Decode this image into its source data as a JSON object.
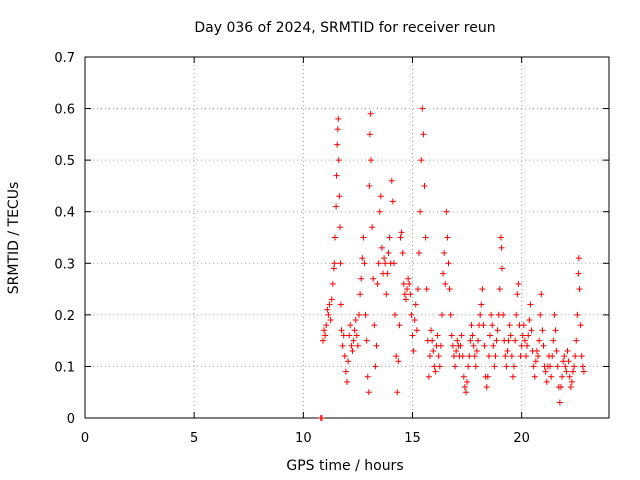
{
  "chart_data": {
    "type": "scatter",
    "title": "Day 036 of 2024, SRMTID for receiver reun",
    "xlabel": "GPS time / hours",
    "ylabel": "SRMTID / TECUs",
    "xlim": [
      0,
      24
    ],
    "ylim": [
      0,
      0.7
    ],
    "xticks": [
      0,
      5,
      10,
      15,
      20
    ],
    "yticks": [
      0,
      0.1,
      0.2,
      0.3,
      0.4,
      0.5,
      0.6,
      0.7
    ],
    "xtick_labels": [
      "0",
      "5",
      "10",
      "15",
      "20"
    ],
    "ytick_labels": [
      "0",
      "0.1",
      "0.2",
      "0.3",
      "0.4",
      "0.5",
      "0.6",
      "0.7"
    ],
    "grid": true,
    "marker": "+",
    "color": "#ff0000",
    "series": [
      {
        "name": "SRMTID",
        "points": [
          [
            10.8,
            0.0
          ],
          [
            10.85,
            0.0
          ],
          [
            10.9,
            0.15
          ],
          [
            10.95,
            0.17
          ],
          [
            11.0,
            0.16
          ],
          [
            11.05,
            0.18
          ],
          [
            11.1,
            0.21
          ],
          [
            11.15,
            0.2
          ],
          [
            11.2,
            0.22
          ],
          [
            11.25,
            0.19
          ],
          [
            11.3,
            0.23
          ],
          [
            11.35,
            0.26
          ],
          [
            11.4,
            0.29
          ],
          [
            11.42,
            0.3
          ],
          [
            11.45,
            0.35
          ],
          [
            11.5,
            0.41
          ],
          [
            11.52,
            0.47
          ],
          [
            11.55,
            0.53
          ],
          [
            11.58,
            0.56
          ],
          [
            11.6,
            0.58
          ],
          [
            11.62,
            0.5
          ],
          [
            11.65,
            0.43
          ],
          [
            11.68,
            0.37
          ],
          [
            11.7,
            0.3
          ],
          [
            11.72,
            0.22
          ],
          [
            11.75,
            0.17
          ],
          [
            11.8,
            0.14
          ],
          [
            11.85,
            0.16
          ],
          [
            11.9,
            0.12
          ],
          [
            11.95,
            0.09
          ],
          [
            12.0,
            0.07
          ],
          [
            12.05,
            0.11
          ],
          [
            12.1,
            0.16
          ],
          [
            12.15,
            0.18
          ],
          [
            12.2,
            0.14
          ],
          [
            12.25,
            0.13
          ],
          [
            12.3,
            0.15
          ],
          [
            12.35,
            0.17
          ],
          [
            12.4,
            0.19
          ],
          [
            12.45,
            0.16
          ],
          [
            12.5,
            0.14
          ],
          [
            12.55,
            0.2
          ],
          [
            12.6,
            0.24
          ],
          [
            12.65,
            0.27
          ],
          [
            12.7,
            0.31
          ],
          [
            12.75,
            0.35
          ],
          [
            12.8,
            0.3
          ],
          [
            12.85,
            0.2
          ],
          [
            12.9,
            0.15
          ],
          [
            12.95,
            0.08
          ],
          [
            13.0,
            0.05
          ],
          [
            13.02,
            0.45
          ],
          [
            13.05,
            0.55
          ],
          [
            13.08,
            0.59
          ],
          [
            13.1,
            0.5
          ],
          [
            13.15,
            0.37
          ],
          [
            13.2,
            0.27
          ],
          [
            13.25,
            0.18
          ],
          [
            13.3,
            0.1
          ],
          [
            13.35,
            0.14
          ],
          [
            13.4,
            0.26
          ],
          [
            13.45,
            0.3
          ],
          [
            13.5,
            0.4
          ],
          [
            13.55,
            0.43
          ],
          [
            13.6,
            0.33
          ],
          [
            13.65,
            0.28
          ],
          [
            13.7,
            0.31
          ],
          [
            13.75,
            0.3
          ],
          [
            13.8,
            0.24
          ],
          [
            13.85,
            0.28
          ],
          [
            13.9,
            0.32
          ],
          [
            13.95,
            0.35
          ],
          [
            14.0,
            0.3
          ],
          [
            14.05,
            0.46
          ],
          [
            14.1,
            0.42
          ],
          [
            14.15,
            0.3
          ],
          [
            14.2,
            0.2
          ],
          [
            14.25,
            0.12
          ],
          [
            14.3,
            0.05
          ],
          [
            14.35,
            0.11
          ],
          [
            14.4,
            0.18
          ],
          [
            14.45,
            0.35
          ],
          [
            14.5,
            0.36
          ],
          [
            14.55,
            0.32
          ],
          [
            14.6,
            0.26
          ],
          [
            14.65,
            0.24
          ],
          [
            14.7,
            0.23
          ],
          [
            14.75,
            0.25
          ],
          [
            14.8,
            0.27
          ],
          [
            14.85,
            0.26
          ],
          [
            14.9,
            0.24
          ],
          [
            14.95,
            0.2
          ],
          [
            15.0,
            0.16
          ],
          [
            15.05,
            0.13
          ],
          [
            15.1,
            0.19
          ],
          [
            15.15,
            0.22
          ],
          [
            15.2,
            0.17
          ],
          [
            15.25,
            0.25
          ],
          [
            15.3,
            0.32
          ],
          [
            15.35,
            0.4
          ],
          [
            15.4,
            0.5
          ],
          [
            15.45,
            0.6
          ],
          [
            15.5,
            0.55
          ],
          [
            15.55,
            0.45
          ],
          [
            15.6,
            0.35
          ],
          [
            15.65,
            0.25
          ],
          [
            15.7,
            0.15
          ],
          [
            15.75,
            0.08
          ],
          [
            15.8,
            0.12
          ],
          [
            15.85,
            0.17
          ],
          [
            15.9,
            0.15
          ],
          [
            15.95,
            0.13
          ],
          [
            16.0,
            0.1
          ],
          [
            16.05,
            0.09
          ],
          [
            16.1,
            0.14
          ],
          [
            16.15,
            0.16
          ],
          [
            16.2,
            0.12
          ],
          [
            16.25,
            0.1
          ],
          [
            16.3,
            0.14
          ],
          [
            16.35,
            0.2
          ],
          [
            16.4,
            0.28
          ],
          [
            16.45,
            0.32
          ],
          [
            16.5,
            0.26
          ],
          [
            16.55,
            0.4
          ],
          [
            16.6,
            0.35
          ],
          [
            16.65,
            0.3
          ],
          [
            16.7,
            0.25
          ],
          [
            16.75,
            0.2
          ],
          [
            16.8,
            0.16
          ],
          [
            16.85,
            0.14
          ],
          [
            16.9,
            0.12
          ],
          [
            16.95,
            0.1
          ],
          [
            17.0,
            0.13
          ],
          [
            17.05,
            0.15
          ],
          [
            17.1,
            0.14
          ],
          [
            17.15,
            0.12
          ],
          [
            17.2,
            0.14
          ],
          [
            17.25,
            0.16
          ],
          [
            17.3,
            0.12
          ],
          [
            17.35,
            0.08
          ],
          [
            17.4,
            0.06
          ],
          [
            17.45,
            0.05
          ],
          [
            17.5,
            0.07
          ],
          [
            17.55,
            0.1
          ],
          [
            17.6,
            0.12
          ],
          [
            17.65,
            0.15
          ],
          [
            17.7,
            0.18
          ],
          [
            17.75,
            0.16
          ],
          [
            17.8,
            0.14
          ],
          [
            17.85,
            0.12
          ],
          [
            17.9,
            0.1
          ],
          [
            17.95,
            0.13
          ],
          [
            18.0,
            0.15
          ],
          [
            18.05,
            0.18
          ],
          [
            18.1,
            0.2
          ],
          [
            18.15,
            0.22
          ],
          [
            18.2,
            0.25
          ],
          [
            18.25,
            0.18
          ],
          [
            18.3,
            0.14
          ],
          [
            18.35,
            0.08
          ],
          [
            18.4,
            0.06
          ],
          [
            18.45,
            0.08
          ],
          [
            18.5,
            0.12
          ],
          [
            18.55,
            0.16
          ],
          [
            18.6,
            0.2
          ],
          [
            18.65,
            0.18
          ],
          [
            18.7,
            0.14
          ],
          [
            18.75,
            0.1
          ],
          [
            18.8,
            0.12
          ],
          [
            18.85,
            0.15
          ],
          [
            18.9,
            0.17
          ],
          [
            18.95,
            0.2
          ],
          [
            19.0,
            0.25
          ],
          [
            19.05,
            0.35
          ],
          [
            19.08,
            0.33
          ],
          [
            19.1,
            0.29
          ],
          [
            19.15,
            0.2
          ],
          [
            19.2,
            0.15
          ],
          [
            19.25,
            0.12
          ],
          [
            19.3,
            0.1
          ],
          [
            19.35,
            0.13
          ],
          [
            19.4,
            0.15
          ],
          [
            19.45,
            0.18
          ],
          [
            19.5,
            0.16
          ],
          [
            19.55,
            0.12
          ],
          [
            19.6,
            0.08
          ],
          [
            19.65,
            0.1
          ],
          [
            19.7,
            0.15
          ],
          [
            19.75,
            0.2
          ],
          [
            19.8,
            0.24
          ],
          [
            19.85,
            0.26
          ],
          [
            19.9,
            0.18
          ],
          [
            19.95,
            0.12
          ],
          [
            20.0,
            0.14
          ],
          [
            20.05,
            0.16
          ],
          [
            20.1,
            0.18
          ],
          [
            20.15,
            0.15
          ],
          [
            20.2,
            0.12
          ],
          [
            20.25,
            0.14
          ],
          [
            20.3,
            0.16
          ],
          [
            20.35,
            0.19
          ],
          [
            20.4,
            0.22
          ],
          [
            20.45,
            0.17
          ],
          [
            20.5,
            0.13
          ],
          [
            20.55,
            0.1
          ],
          [
            20.6,
            0.08
          ],
          [
            20.65,
            0.11
          ],
          [
            20.7,
            0.13
          ],
          [
            20.75,
            0.12
          ],
          [
            20.8,
            0.15
          ],
          [
            20.85,
            0.2
          ],
          [
            20.9,
            0.24
          ],
          [
            20.95,
            0.17
          ],
          [
            21.0,
            0.14
          ],
          [
            21.05,
            0.1
          ],
          [
            21.1,
            0.09
          ],
          [
            21.15,
            0.07
          ],
          [
            21.2,
            0.1
          ],
          [
            21.25,
            0.12
          ],
          [
            21.3,
            0.1
          ],
          [
            21.35,
            0.08
          ],
          [
            21.4,
            0.12
          ],
          [
            21.45,
            0.15
          ],
          [
            21.5,
            0.2
          ],
          [
            21.55,
            0.17
          ],
          [
            21.6,
            0.13
          ],
          [
            21.65,
            0.1
          ],
          [
            21.7,
            0.06
          ],
          [
            21.75,
            0.03
          ],
          [
            21.8,
            0.06
          ],
          [
            21.85,
            0.08
          ],
          [
            21.9,
            0.11
          ],
          [
            21.95,
            0.12
          ],
          [
            22.0,
            0.1
          ],
          [
            22.05,
            0.09
          ],
          [
            22.1,
            0.13
          ],
          [
            22.15,
            0.11
          ],
          [
            22.2,
            0.08
          ],
          [
            22.25,
            0.06
          ],
          [
            22.3,
            0.07
          ],
          [
            22.35,
            0.09
          ],
          [
            22.4,
            0.1
          ],
          [
            22.45,
            0.12
          ],
          [
            22.5,
            0.15
          ],
          [
            22.55,
            0.2
          ],
          [
            22.6,
            0.28
          ],
          [
            22.62,
            0.31
          ],
          [
            22.65,
            0.25
          ],
          [
            22.7,
            0.18
          ],
          [
            22.75,
            0.12
          ],
          [
            22.8,
            0.1
          ],
          [
            22.85,
            0.09
          ]
        ]
      }
    ]
  }
}
